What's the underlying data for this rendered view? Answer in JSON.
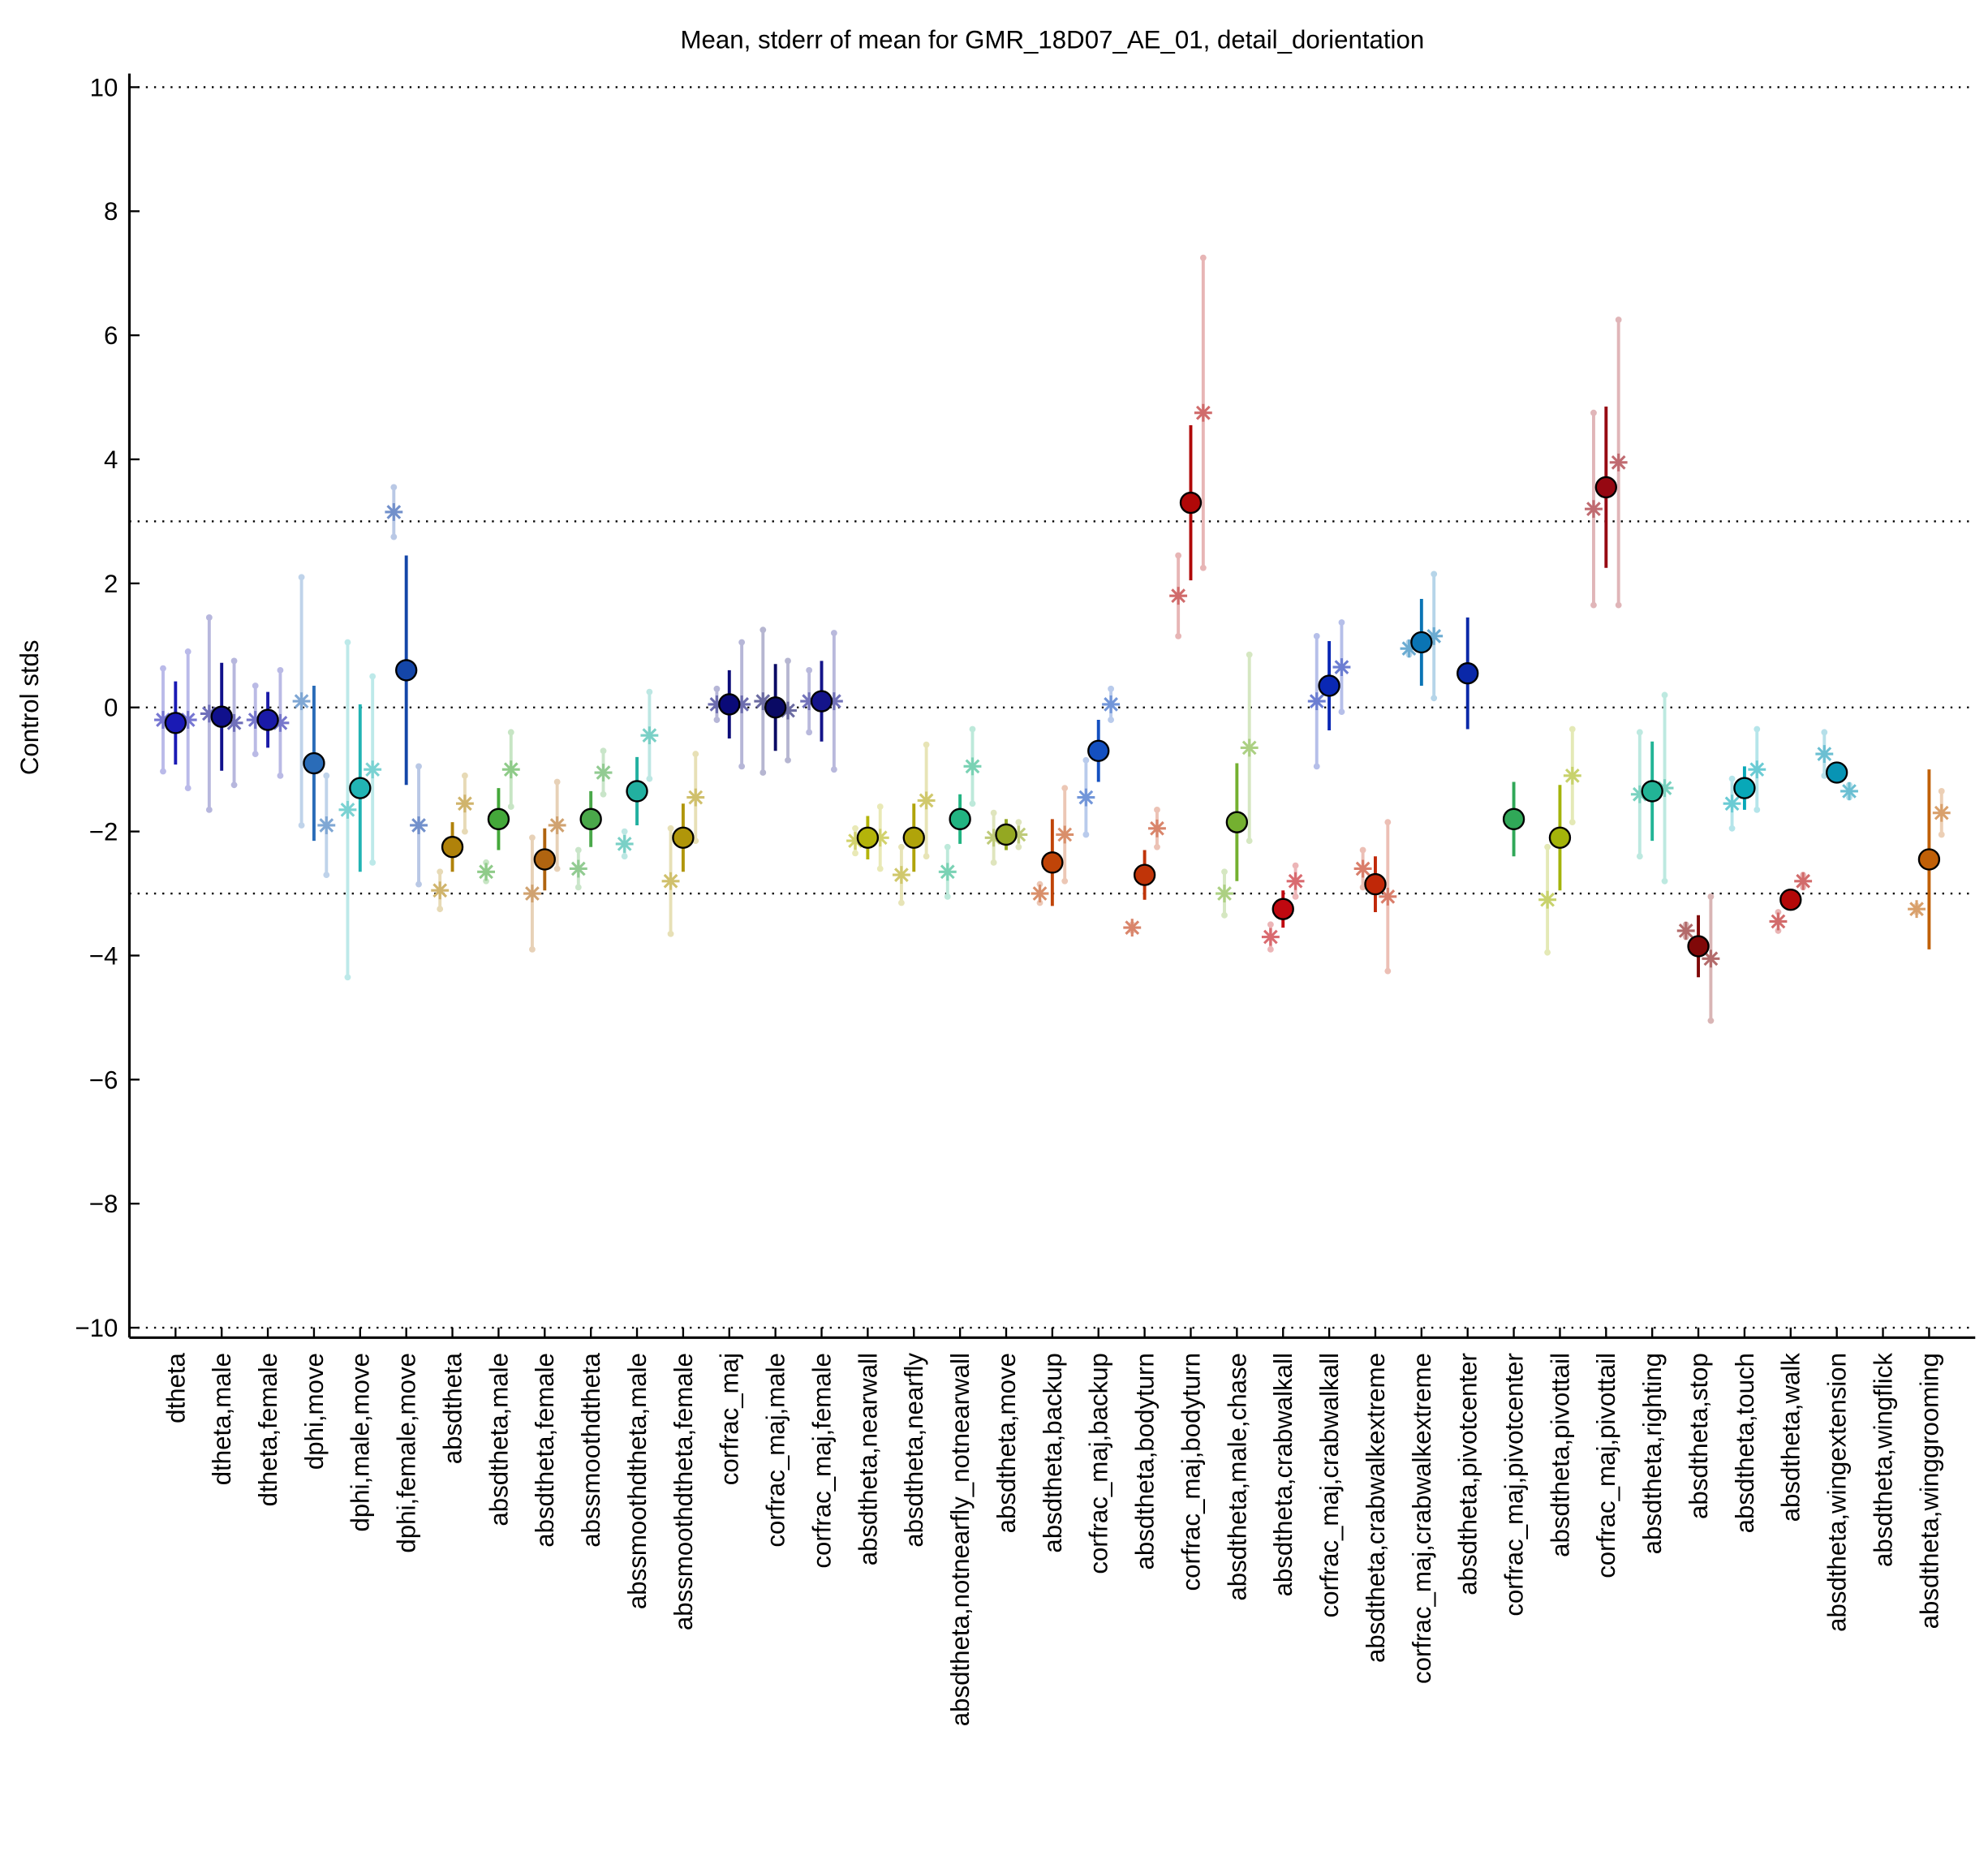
{
  "chart_data": {
    "type": "errorbar",
    "title": "Mean, stderr of mean for GMR_18D07_AE_01, detail_dorientation",
    "y_label": "Control stds",
    "categories": [
      "dtheta",
      "dtheta,male",
      "dtheta,female",
      "dphi,move",
      "dphi,male,move",
      "dphi,female,move",
      "absdtheta",
      "absdtheta,male",
      "absdtheta,female",
      "abssmoothdtheta",
      "abssmoothdtheta,male",
      "abssmoothdtheta,female",
      "corfrac_maj",
      "corfrac_maj,male",
      "corfrac_maj,female",
      "absdtheta,nearwall",
      "absdtheta,nearfly",
      "absdtheta,notnearfly_notnearwall",
      "absdtheta,move",
      "absdtheta,backup",
      "corfrac_maj,backup",
      "absdtheta,bodyturn",
      "corfrac_maj,bodyturn",
      "absdtheta,male,chase",
      "absdtheta,crabwalkall",
      "corfrac_maj,crabwalkall",
      "absdtheta,crabwalkextreme",
      "corfrac_maj,crabwalkextreme",
      "absdtheta,pivotcenter",
      "corfrac_maj,pivotcenter",
      "absdtheta,pivottail",
      "corfrac_maj,pivottail",
      "absdtheta,righting",
      "absdtheta,stop",
      "absdtheta,touch",
      "absdtheta,walk",
      "absdtheta,wingextension",
      "absdtheta,wingflick",
      "absdtheta,winggrooming"
    ],
    "colors": [
      "#1a1ab4",
      "#10108c",
      "#1a1aa8",
      "#2a6cb8",
      "#22b4b4",
      "#1446a8",
      "#b0820a",
      "#44a83a",
      "#b06410",
      "#4aa84a",
      "#22b0a0",
      "#b0960a",
      "#0a0a78",
      "#0a0a64",
      "#14148a",
      "#b4b40a",
      "#b0a40a",
      "#22b482",
      "#94a822",
      "#c04408",
      "#1450c0",
      "#c03408",
      "#b00808",
      "#74b030",
      "#c00810",
      "#0a28b4",
      "#c02808",
      "#0a74b4",
      "#0a28a8",
      "#30a858",
      "#a4b40a",
      "#960812",
      "#22b496",
      "#800808",
      "#08a8b8",
      "#b40808",
      "#0894b4",
      "#9a9a9a",
      "#c06008"
    ],
    "series": [
      {
        "marker": "circle",
        "values": [
          -0.25,
          -0.15,
          -0.2,
          -0.9,
          -1.3,
          0.6,
          -2.25,
          -1.8,
          -2.45,
          -1.8,
          -1.35,
          -2.1,
          0.05,
          0.0,
          0.1,
          -2.1,
          -2.1,
          -1.8,
          -2.05,
          -2.5,
          -0.7,
          -2.7,
          3.3,
          -1.85,
          -3.25,
          0.35,
          -2.85,
          1.05,
          0.55,
          -1.8,
          -2.1,
          3.55,
          -1.35,
          -3.85,
          -1.3,
          -3.1,
          -1.05,
          null,
          -2.45
        ],
        "errors": [
          0.67,
          0.87,
          0.45,
          1.25,
          1.35,
          1.85,
          0.4,
          0.5,
          0.5,
          0.45,
          0.55,
          0.55,
          0.55,
          0.7,
          0.65,
          0.35,
          0.55,
          0.4,
          0.25,
          0.7,
          0.5,
          0.4,
          1.25,
          0.95,
          0.3,
          0.72,
          0.45,
          0.7,
          0.9,
          0.6,
          0.85,
          1.3,
          0.8,
          0.5,
          0.35,
          0.1,
          0.15,
          null,
          1.45
        ]
      },
      {
        "marker": "star",
        "values": [
          -0.2,
          -0.1,
          -0.2,
          0.1,
          -1.65,
          3.15,
          -2.95,
          -2.65,
          -3.0,
          -2.6,
          -2.2,
          -2.8,
          0.05,
          0.1,
          0.1,
          -2.15,
          -2.7,
          -2.65,
          -2.1,
          -3.0,
          -1.45,
          -3.55,
          1.8,
          -3.0,
          -3.7,
          0.1,
          -2.6,
          0.95,
          null,
          null,
          -3.1,
          3.2,
          -1.4,
          -3.6,
          -1.55,
          -3.45,
          -0.75,
          null,
          -3.25
        ],
        "errors": [
          0.83,
          1.55,
          0.55,
          2.0,
          2.7,
          0.4,
          0.3,
          0.15,
          0.9,
          0.3,
          0.2,
          0.85,
          0.25,
          1.15,
          0.5,
          0.2,
          0.45,
          0.4,
          0.4,
          0.15,
          0.6,
          0.05,
          0.65,
          0.35,
          0.2,
          1.05,
          0.3,
          0.1,
          null,
          null,
          0.85,
          1.55,
          1.0,
          0.1,
          0.4,
          0.15,
          0.35,
          null,
          0.05
        ]
      },
      {
        "marker": "star",
        "values": [
          -0.2,
          -0.25,
          -0.25,
          -1.9,
          -1.0,
          -1.9,
          -1.55,
          -1.0,
          -1.9,
          -1.05,
          -0.45,
          -1.45,
          0.05,
          -0.05,
          0.1,
          -2.1,
          -1.5,
          -0.95,
          -2.05,
          -2.05,
          0.05,
          -1.95,
          4.75,
          -0.65,
          -2.8,
          0.65,
          -3.05,
          1.15,
          null,
          null,
          -1.1,
          3.95,
          -1.3,
          -4.05,
          -1.0,
          -2.8,
          -1.35,
          null,
          -1.7
        ],
        "errors": [
          1.1,
          1.0,
          0.85,
          0.8,
          1.5,
          0.95,
          0.45,
          0.6,
          0.7,
          0.35,
          0.7,
          0.7,
          1.0,
          0.8,
          1.1,
          0.5,
          0.9,
          0.6,
          0.2,
          0.75,
          0.25,
          0.3,
          2.5,
          1.5,
          0.25,
          0.72,
          1.2,
          1.0,
          null,
          null,
          0.75,
          2.3,
          1.5,
          1.0,
          0.65,
          0.1,
          0.1,
          null,
          0.35
        ]
      }
    ],
    "ylim": [
      -10.16,
      10.22
    ],
    "yticks": [
      {
        "value": -10,
        "label": "−10"
      },
      {
        "value": -8,
        "label": "−8"
      },
      {
        "value": -6,
        "label": "−6"
      },
      {
        "value": -4,
        "label": "−4"
      },
      {
        "value": -2,
        "label": "−2"
      },
      0,
      2,
      4,
      6,
      8,
      10
    ],
    "hlines": [
      -10,
      -3,
      0,
      3,
      10
    ]
  }
}
